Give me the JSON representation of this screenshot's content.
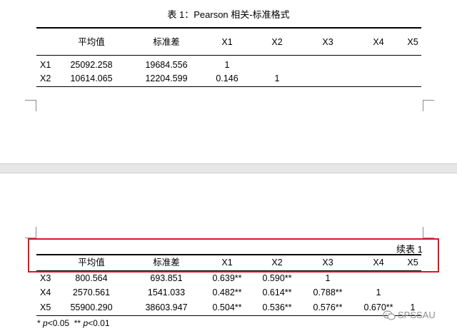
{
  "table1": {
    "title": "表 1：Pearson 相关-标准格式",
    "headers": [
      "",
      "平均值",
      "标准差",
      "X1",
      "X2",
      "X3",
      "X4",
      "X5"
    ],
    "rows": [
      [
        "X1",
        "25092.258",
        "19684.556",
        "1",
        "",
        "",
        "",
        ""
      ],
      [
        "X2",
        "10614.065",
        "12204.599",
        "0.146",
        "1",
        "",
        "",
        ""
      ]
    ]
  },
  "table_continued": {
    "label": "续表 1",
    "headers": [
      "",
      "平均值",
      "标准差",
      "X1",
      "X2",
      "X3",
      "X4",
      "X5"
    ],
    "rows": [
      [
        "X3",
        "800.564",
        "693.851",
        "0.639**",
        "0.590**",
        "1",
        "",
        ""
      ],
      [
        "X4",
        "2570.561",
        "1541.033",
        "0.482**",
        "0.614**",
        "0.788**",
        "1",
        ""
      ],
      [
        "X5",
        "55900.290",
        "38603.947",
        "0.504**",
        "0.536**",
        "0.576**",
        "0.670**",
        "1"
      ]
    ]
  },
  "footnote": {
    "p1_symbol": "*",
    "p1_var": "p",
    "p1_value": "<0.05",
    "p2_symbol": "**",
    "p2_var": "p",
    "p2_value": "<0.01"
  },
  "watermark": {
    "text": "SPSSAU",
    "icon": "wechat-icon"
  },
  "colors": {
    "highlight_border": "#e0141e",
    "page_gap": "#e6e6e6",
    "watermark": "#8f8f8f"
  }
}
